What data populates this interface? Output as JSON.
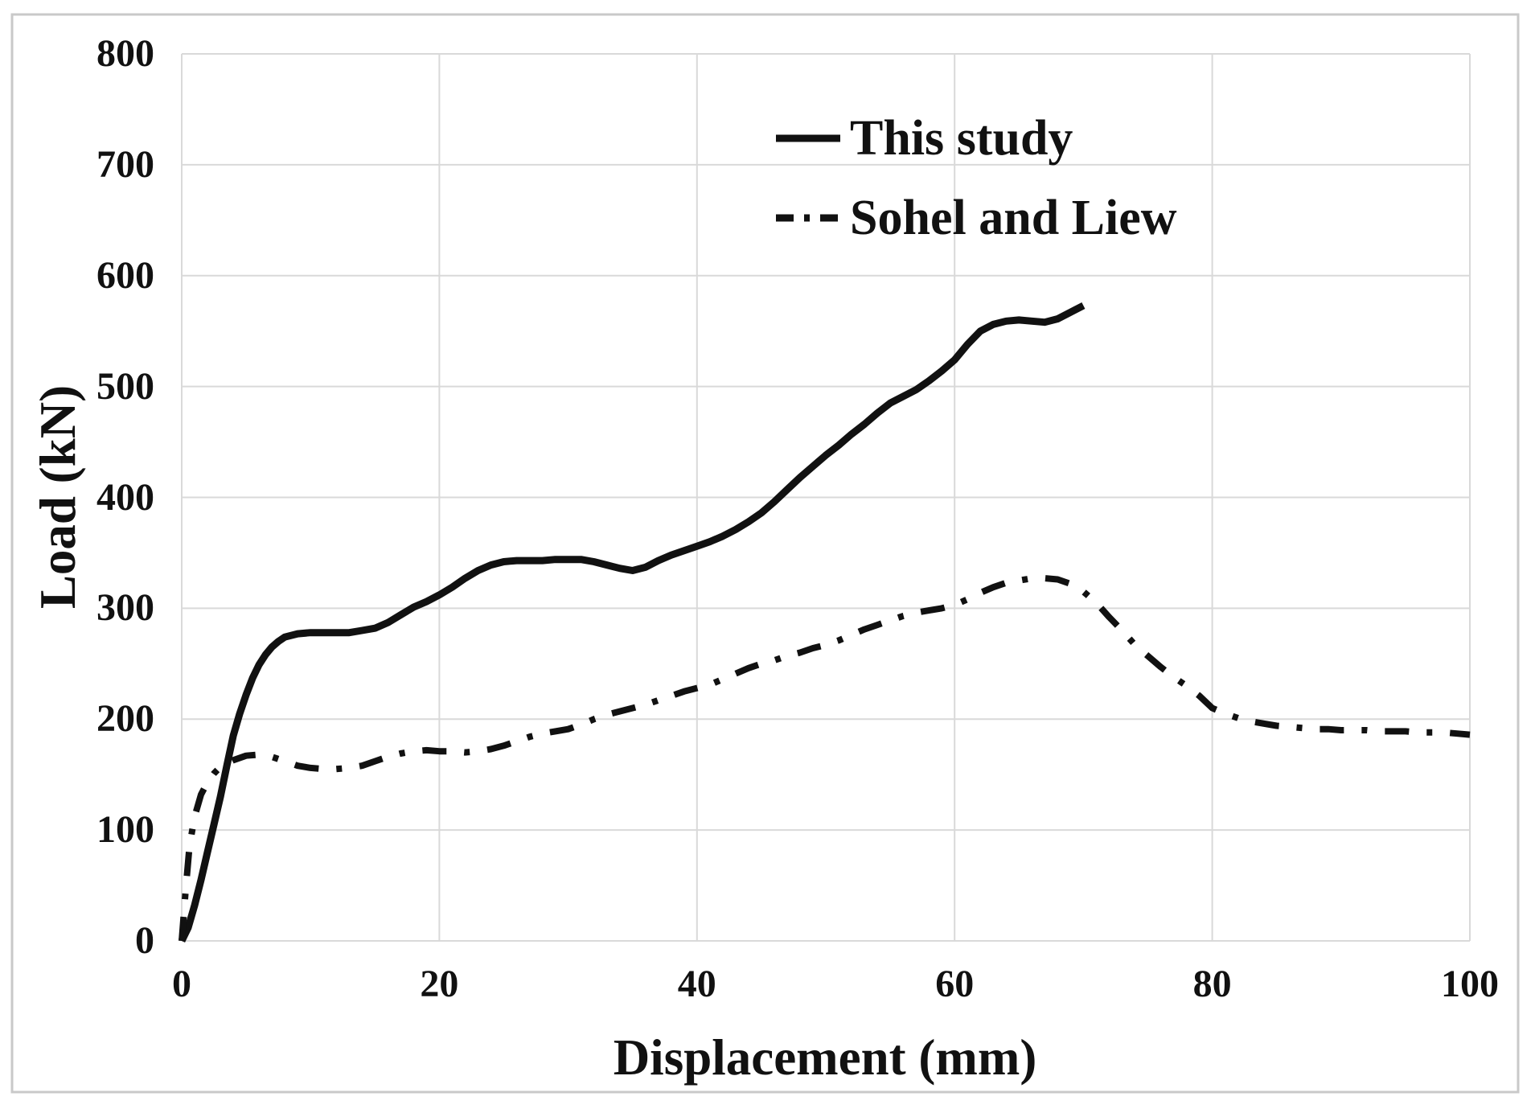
{
  "figure": {
    "background": "#ffffff",
    "border_color": "#c9c9c9"
  },
  "chart_data": {
    "type": "line",
    "title": "",
    "xlabel": "Displacement (mm)",
    "ylabel": "Load (kN)",
    "xlim": [
      0,
      100
    ],
    "ylim": [
      0,
      800
    ],
    "x_ticks": [
      0,
      20,
      40,
      60,
      80,
      100
    ],
    "y_ticks": [
      0,
      100,
      200,
      300,
      400,
      500,
      600,
      700,
      800
    ],
    "grid": true,
    "gridline_color": "#d9d9d9",
    "legend_position": "top-right",
    "series": [
      {
        "name": "This study",
        "line_style": "solid",
        "color": "#111111",
        "points": [
          [
            0,
            0
          ],
          [
            0.5,
            12
          ],
          [
            1,
            32
          ],
          [
            1.5,
            55
          ],
          [
            2,
            80
          ],
          [
            2.5,
            105
          ],
          [
            3,
            130
          ],
          [
            3.5,
            158
          ],
          [
            4,
            185
          ],
          [
            4.5,
            205
          ],
          [
            5,
            222
          ],
          [
            5.5,
            237
          ],
          [
            6,
            249
          ],
          [
            6.5,
            258
          ],
          [
            7,
            265
          ],
          [
            7.5,
            270
          ],
          [
            8,
            274
          ],
          [
            9,
            277
          ],
          [
            10,
            278
          ],
          [
            11,
            278
          ],
          [
            12,
            278
          ],
          [
            13,
            278
          ],
          [
            14,
            280
          ],
          [
            15,
            282
          ],
          [
            16,
            287
          ],
          [
            17,
            294
          ],
          [
            18,
            301
          ],
          [
            19,
            306
          ],
          [
            20,
            312
          ],
          [
            21,
            319
          ],
          [
            22,
            327
          ],
          [
            23,
            334
          ],
          [
            24,
            339
          ],
          [
            25,
            342
          ],
          [
            26,
            343
          ],
          [
            27,
            343
          ],
          [
            28,
            343
          ],
          [
            29,
            344
          ],
          [
            30,
            344
          ],
          [
            31,
            344
          ],
          [
            32,
            342
          ],
          [
            33,
            339
          ],
          [
            34,
            336
          ],
          [
            35,
            334
          ],
          [
            36,
            337
          ],
          [
            37,
            343
          ],
          [
            38,
            348
          ],
          [
            39,
            352
          ],
          [
            40,
            356
          ],
          [
            41,
            360
          ],
          [
            42,
            365
          ],
          [
            43,
            371
          ],
          [
            44,
            378
          ],
          [
            45,
            386
          ],
          [
            46,
            396
          ],
          [
            47,
            407
          ],
          [
            48,
            418
          ],
          [
            49,
            428
          ],
          [
            50,
            438
          ],
          [
            51,
            447
          ],
          [
            52,
            457
          ],
          [
            53,
            466
          ],
          [
            54,
            476
          ],
          [
            55,
            485
          ],
          [
            56,
            491
          ],
          [
            57,
            497
          ],
          [
            58,
            505
          ],
          [
            59,
            514
          ],
          [
            60,
            524
          ],
          [
            61,
            538
          ],
          [
            62,
            550
          ],
          [
            63,
            556
          ],
          [
            64,
            559
          ],
          [
            65,
            560
          ],
          [
            66,
            559
          ],
          [
            67,
            558
          ],
          [
            68,
            561
          ],
          [
            69,
            567
          ],
          [
            70,
            573
          ]
        ]
      },
      {
        "name": "Sohel and Liew",
        "line_style": "dash-dot",
        "color": "#111111",
        "points": [
          [
            0,
            0
          ],
          [
            0.3,
            45
          ],
          [
            0.6,
            85
          ],
          [
            1,
            112
          ],
          [
            1.5,
            132
          ],
          [
            2,
            143
          ],
          [
            2.5,
            151
          ],
          [
            3,
            157
          ],
          [
            4,
            163
          ],
          [
            5,
            167
          ],
          [
            6,
            168
          ],
          [
            7,
            166
          ],
          [
            8,
            162
          ],
          [
            9,
            158
          ],
          [
            10,
            156
          ],
          [
            11,
            155
          ],
          [
            12,
            155
          ],
          [
            13,
            156
          ],
          [
            14,
            158
          ],
          [
            15,
            162
          ],
          [
            16,
            166
          ],
          [
            17,
            169
          ],
          [
            18,
            171
          ],
          [
            19,
            172
          ],
          [
            20,
            171
          ],
          [
            21,
            171
          ],
          [
            22,
            170
          ],
          [
            23,
            171
          ],
          [
            24,
            173
          ],
          [
            25,
            176
          ],
          [
            26,
            180
          ],
          [
            27,
            184
          ],
          [
            28,
            187
          ],
          [
            29,
            189
          ],
          [
            30,
            191
          ],
          [
            31,
            195
          ],
          [
            32,
            200
          ],
          [
            33,
            204
          ],
          [
            34,
            207
          ],
          [
            35,
            210
          ],
          [
            36,
            213
          ],
          [
            37,
            217
          ],
          [
            38,
            221
          ],
          [
            39,
            225
          ],
          [
            40,
            228
          ],
          [
            41,
            231
          ],
          [
            42,
            236
          ],
          [
            43,
            241
          ],
          [
            44,
            246
          ],
          [
            45,
            250
          ],
          [
            46,
            253
          ],
          [
            47,
            257
          ],
          [
            48,
            260
          ],
          [
            49,
            264
          ],
          [
            50,
            267
          ],
          [
            51,
            271
          ],
          [
            52,
            276
          ],
          [
            53,
            281
          ],
          [
            54,
            285
          ],
          [
            55,
            289
          ],
          [
            56,
            293
          ],
          [
            57,
            296
          ],
          [
            58,
            298
          ],
          [
            59,
            300
          ],
          [
            60,
            303
          ],
          [
            61,
            308
          ],
          [
            62,
            314
          ],
          [
            63,
            319
          ],
          [
            64,
            323
          ],
          [
            65,
            325
          ],
          [
            66,
            327
          ],
          [
            67,
            327
          ],
          [
            68,
            326
          ],
          [
            69,
            322
          ],
          [
            70,
            315
          ],
          [
            71,
            305
          ],
          [
            72,
            292
          ],
          [
            73,
            280
          ],
          [
            74,
            267
          ],
          [
            75,
            257
          ],
          [
            76,
            247
          ],
          [
            77,
            238
          ],
          [
            78,
            230
          ],
          [
            79,
            221
          ],
          [
            80,
            210
          ],
          [
            81,
            205
          ],
          [
            82,
            201
          ],
          [
            83,
            198
          ],
          [
            84,
            196
          ],
          [
            85,
            194
          ],
          [
            86,
            193
          ],
          [
            87,
            192
          ],
          [
            88,
            191
          ],
          [
            89,
            191
          ],
          [
            90,
            190
          ],
          [
            91,
            190
          ],
          [
            92,
            190
          ],
          [
            93,
            189
          ],
          [
            94,
            189
          ],
          [
            95,
            189
          ],
          [
            96,
            188
          ],
          [
            97,
            188
          ],
          [
            98,
            188
          ],
          [
            99,
            187
          ],
          [
            100,
            186
          ]
        ]
      }
    ]
  }
}
